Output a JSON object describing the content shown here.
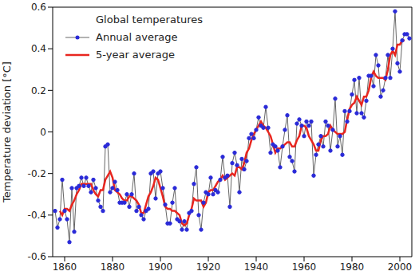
{
  "chart_data": {
    "type": "line",
    "title": "Global temperatures",
    "y_label": "Temperature deviation [°C]",
    "x": [
      1856,
      1857,
      1858,
      1859,
      1860,
      1861,
      1862,
      1863,
      1864,
      1865,
      1866,
      1867,
      1868,
      1869,
      1870,
      1871,
      1872,
      1873,
      1874,
      1875,
      1876,
      1877,
      1878,
      1879,
      1880,
      1881,
      1882,
      1883,
      1884,
      1885,
      1886,
      1887,
      1888,
      1889,
      1890,
      1891,
      1892,
      1893,
      1894,
      1895,
      1896,
      1897,
      1898,
      1899,
      1900,
      1901,
      1902,
      1903,
      1904,
      1905,
      1906,
      1907,
      1908,
      1909,
      1910,
      1911,
      1912,
      1913,
      1914,
      1915,
      1916,
      1917,
      1918,
      1919,
      1920,
      1921,
      1922,
      1923,
      1924,
      1925,
      1926,
      1927,
      1928,
      1929,
      1930,
      1931,
      1932,
      1933,
      1934,
      1935,
      1936,
      1937,
      1938,
      1939,
      1940,
      1941,
      1942,
      1943,
      1944,
      1945,
      1946,
      1947,
      1948,
      1949,
      1950,
      1951,
      1952,
      1953,
      1954,
      1955,
      1956,
      1957,
      1958,
      1959,
      1960,
      1961,
      1962,
      1963,
      1964,
      1965,
      1966,
      1967,
      1968,
      1969,
      1970,
      1971,
      1972,
      1973,
      1974,
      1975,
      1976,
      1977,
      1978,
      1979,
      1980,
      1981,
      1982,
      1983,
      1984,
      1985,
      1986,
      1987,
      1988,
      1989,
      1990,
      1991,
      1992,
      1993,
      1994,
      1995,
      1996,
      1997,
      1998,
      1999,
      2000,
      2001,
      2002,
      2003,
      2004
    ],
    "series": [
      {
        "name": "Annual average",
        "color": "#2a2ad8",
        "marker": "circle",
        "values": [
          -0.38,
          -0.46,
          -0.42,
          -0.23,
          -0.38,
          -0.42,
          -0.53,
          -0.27,
          -0.48,
          -0.27,
          -0.26,
          -0.22,
          -0.26,
          -0.22,
          -0.26,
          -0.29,
          -0.23,
          -0.27,
          -0.33,
          -0.36,
          -0.38,
          -0.07,
          -0.06,
          -0.29,
          -0.27,
          -0.24,
          -0.28,
          -0.34,
          -0.34,
          -0.34,
          -0.3,
          -0.36,
          -0.3,
          -0.2,
          -0.38,
          -0.36,
          -0.4,
          -0.42,
          -0.38,
          -0.37,
          -0.2,
          -0.19,
          -0.32,
          -0.2,
          -0.19,
          -0.27,
          -0.35,
          -0.44,
          -0.44,
          -0.34,
          -0.27,
          -0.42,
          -0.43,
          -0.47,
          -0.43,
          -0.47,
          -0.39,
          -0.38,
          -0.25,
          -0.17,
          -0.4,
          -0.47,
          -0.34,
          -0.29,
          -0.3,
          -0.22,
          -0.3,
          -0.28,
          -0.29,
          -0.23,
          -0.12,
          -0.22,
          -0.21,
          -0.36,
          -0.15,
          -0.1,
          -0.16,
          -0.29,
          -0.13,
          -0.18,
          -0.14,
          -0.03,
          -0.01,
          -0.03,
          0.01,
          0.07,
          0.03,
          0.02,
          0.12,
          0.02,
          -0.1,
          -0.06,
          -0.07,
          -0.09,
          -0.17,
          -0.07,
          0.01,
          0.08,
          -0.12,
          -0.14,
          -0.19,
          0.04,
          0.06,
          0.03,
          -0.02,
          0.05,
          0.03,
          0.05,
          -0.21,
          -0.11,
          -0.06,
          -0.02,
          -0.07,
          0.05,
          0.03,
          -0.09,
          0.01,
          0.16,
          -0.07,
          -0.02,
          -0.11,
          0.1,
          0.05,
          0.1,
          0.18,
          0.25,
          0.09,
          0.26,
          0.09,
          0.07,
          0.15,
          0.27,
          0.27,
          0.22,
          0.37,
          0.32,
          0.17,
          0.2,
          0.26,
          0.37,
          0.26,
          0.4,
          0.58,
          0.33,
          0.29,
          0.44,
          0.47,
          0.47,
          0.45
        ]
      },
      {
        "name": "5-year average",
        "color": "#e8261f",
        "marker": "none",
        "values": [
          null,
          null,
          -0.38,
          -0.4,
          -0.37,
          -0.37,
          -0.38,
          -0.35,
          -0.33,
          -0.3,
          -0.28,
          -0.25,
          -0.25,
          -0.25,
          -0.25,
          -0.25,
          -0.28,
          -0.3,
          -0.31,
          -0.28,
          -0.28,
          -0.23,
          -0.21,
          -0.19,
          -0.22,
          -0.28,
          -0.29,
          -0.3,
          -0.32,
          -0.33,
          -0.33,
          -0.31,
          -0.31,
          -0.32,
          -0.33,
          -0.35,
          -0.39,
          -0.39,
          -0.35,
          -0.31,
          -0.29,
          -0.26,
          -0.22,
          -0.23,
          -0.27,
          -0.31,
          -0.36,
          -0.37,
          -0.37,
          -0.38,
          -0.38,
          -0.39,
          -0.4,
          -0.44,
          -0.45,
          -0.44,
          -0.4,
          -0.37,
          -0.32,
          -0.33,
          -0.33,
          -0.33,
          -0.36,
          -0.34,
          -0.29,
          -0.28,
          -0.28,
          -0.26,
          -0.24,
          -0.23,
          -0.21,
          -0.23,
          -0.22,
          -0.21,
          -0.2,
          -0.21,
          -0.17,
          -0.17,
          -0.18,
          -0.15,
          -0.1,
          -0.08,
          -0.04,
          -0.01,
          0.01,
          0.03,
          0.05,
          0.03,
          0.02,
          0.0,
          -0.02,
          -0.06,
          -0.1,
          -0.08,
          -0.08,
          -0.07,
          -0.06,
          -0.05,
          -0.05,
          -0.07,
          -0.07,
          -0.04,
          -0.02,
          0.03,
          0.03,
          0.02,
          -0.02,
          -0.04,
          -0.06,
          -0.09,
          -0.09,
          -0.04,
          -0.02,
          -0.02,
          -0.01,
          0.03,
          0.01,
          0.0,
          -0.01,
          -0.01,
          -0.01,
          0.0,
          0.06,
          0.11,
          0.13,
          0.14,
          0.17,
          0.15,
          0.13,
          0.17,
          0.17,
          0.2,
          0.26,
          0.29,
          0.27,
          0.26,
          0.26,
          0.26,
          0.25,
          0.3,
          0.37,
          0.39,
          0.37,
          0.42,
          0.42,
          0.44,
          0.44,
          null,
          null
        ]
      }
    ],
    "xlim": [
      1855,
      2005
    ],
    "xticks": [
      1860,
      1880,
      1900,
      1920,
      1940,
      1960,
      1980,
      2000
    ],
    "ylim": [
      -0.6,
      0.6
    ],
    "yticks": [
      -0.6,
      -0.4,
      -0.2,
      0,
      0.2,
      0.4,
      0.6
    ],
    "grid": false,
    "legend": "upper left"
  }
}
